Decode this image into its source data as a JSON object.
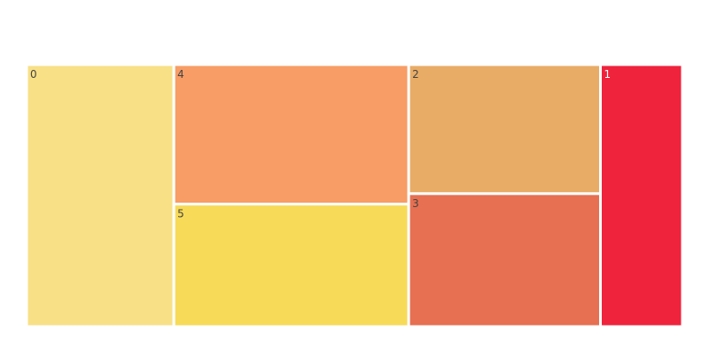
{
  "chart_data": {
    "type": "treemap",
    "title": "",
    "items": [
      {
        "label": "0",
        "value": 5.3,
        "color": "#f8e087"
      },
      {
        "label": "1",
        "value": 2.95,
        "color": "#ef233c"
      },
      {
        "label": "2",
        "value": 3.4,
        "color": "#e8ac66"
      },
      {
        "label": "3",
        "value": 3.5,
        "color": "#e67051"
      },
      {
        "label": "4",
        "value": 4.5,
        "color": "#f79d65"
      },
      {
        "label": "5",
        "value": 3.95,
        "color": "#f7da57"
      }
    ],
    "label_colors": {
      "dark": "#444444",
      "light": "#ffffff"
    }
  }
}
